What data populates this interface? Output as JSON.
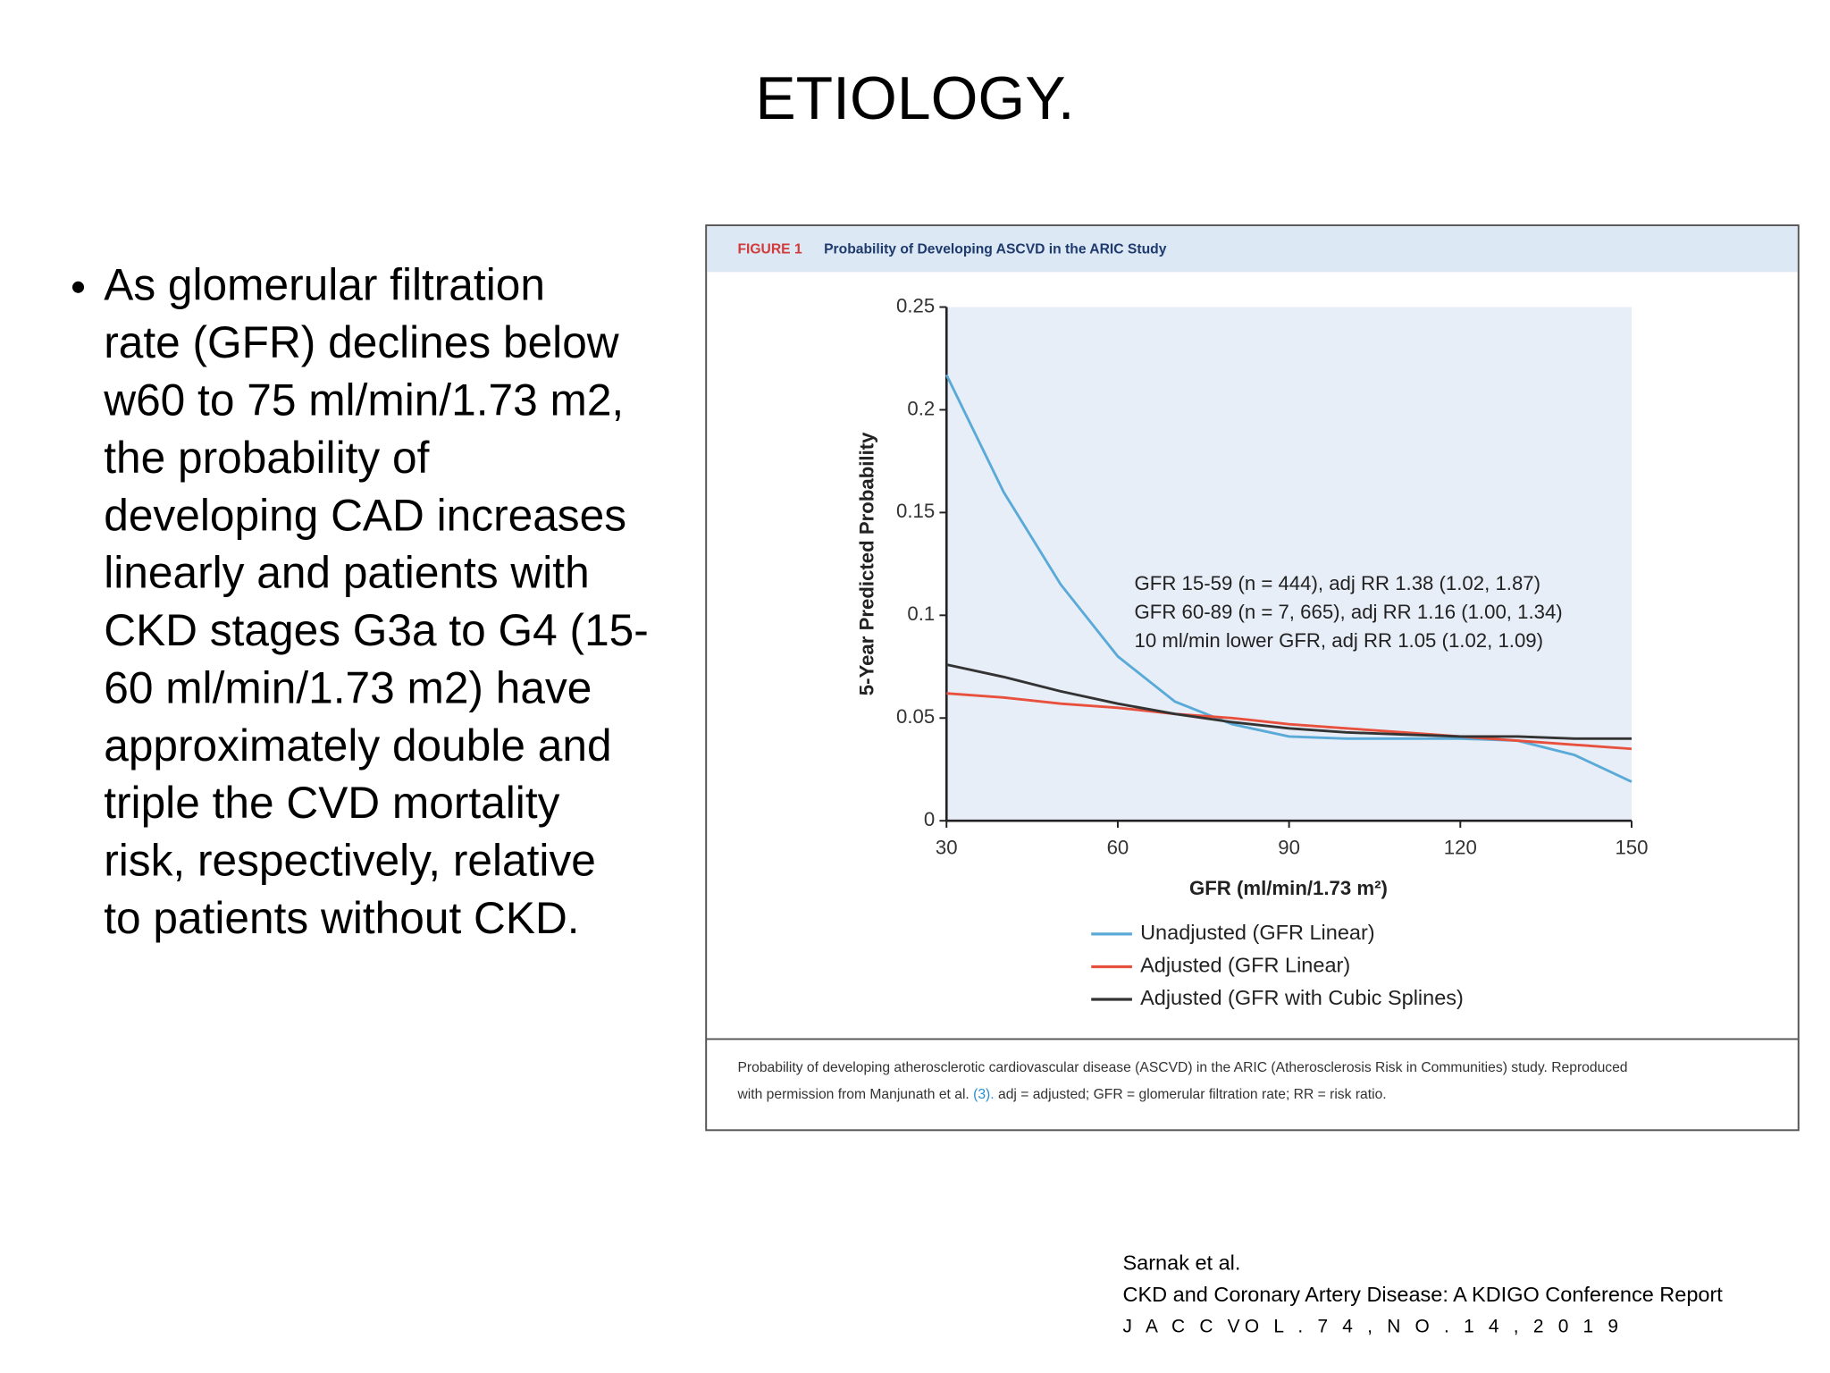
{
  "slide_title": "ETIOLOGY.",
  "bullet_lines": [
    "As glomerular filtration",
    "rate (GFR) declines below",
    "w60 to 75 ml/min/1.73 m2,",
    "the probability of",
    "developing CAD increases",
    "linearly and patients with",
    "CKD stages G3a to G4 (15-",
    "60 ml/min/1.73 m2) have",
    "approximately double and",
    "triple the CVD mortality",
    "risk, respectively, relative",
    "to patients without CKD."
  ],
  "figure": {
    "label": "FIGURE 1",
    "heading": "Probability of Developing ASCVD in the ARIC Study",
    "caption_line1": "Probability of developing atherosclerotic cardiovascular disease (ASCVD) in the ARIC (Atherosclerosis Risk in Communities) study. Reproduced",
    "caption_line2_start": "with permission from Manjunath et al.",
    "caption_ref": "(3).",
    "caption_line2_end": "adj = adjusted; GFR = glomerular filtration rate; RR = risk ratio."
  },
  "chart_data": {
    "type": "line",
    "x_label": "GFR (ml/min/1.73 m²)",
    "y_label": "5-Year Predicted Probability",
    "x": [
      30,
      40,
      50,
      60,
      70,
      80,
      90,
      100,
      110,
      120,
      130,
      140,
      150
    ],
    "series": [
      {
        "name": "Unadjusted (GFR Linear)",
        "color": "#5aaad8",
        "values": [
          0.217,
          0.16,
          0.115,
          0.08,
          0.058,
          0.047,
          0.041,
          0.04,
          0.04,
          0.04,
          0.039,
          0.032,
          0.019
        ]
      },
      {
        "name": "Adjusted (GFR Linear)",
        "color": "#e8503e",
        "values": [
          0.062,
          0.06,
          0.057,
          0.055,
          0.052,
          0.05,
          0.047,
          0.045,
          0.043,
          0.041,
          0.039,
          0.037,
          0.035
        ]
      },
      {
        "name": "Adjusted (GFR with Cubic Splines)",
        "color": "#333333",
        "values": [
          0.076,
          0.07,
          0.063,
          0.057,
          0.052,
          0.048,
          0.045,
          0.043,
          0.042,
          0.041,
          0.041,
          0.04,
          0.04
        ]
      }
    ],
    "xlim": [
      30,
      150
    ],
    "xticks": [
      30,
      60,
      90,
      120,
      150
    ],
    "ylim": [
      0,
      0.25
    ],
    "yticks": [
      0,
      0.05,
      0.1,
      0.15,
      0.2,
      0.25
    ],
    "annotations": [
      "GFR 15-59 (n = 444), adj RR 1.38 (1.02, 1.87)",
      "GFR 60-89 (n = 7, 665), adj RR 1.16 (1.00, 1.34)",
      "10 ml/min lower GFR, adj RR 1.05 (1.02, 1.09)"
    ]
  },
  "citation": [
    "Sarnak et al.",
    "CKD and Coronary Artery Disease: A KDIGO Conference Report",
    "J A C C VO L . 7 4 , N O . 1 4 , 2 0 1 9"
  ]
}
